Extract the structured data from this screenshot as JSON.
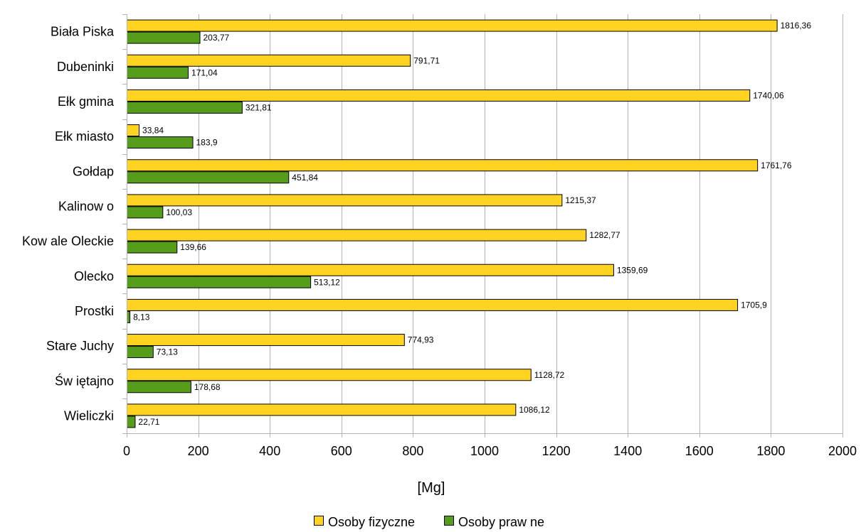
{
  "chart_data": {
    "type": "bar",
    "orientation": "horizontal",
    "categories": [
      "Biała Piska",
      "Dubeninki",
      "Ełk gmina",
      "Ełk miasto",
      "Gołdap",
      "Kalinow o",
      "Kow ale Oleckie",
      "Olecko",
      "Prostki",
      "Stare Juchy",
      "Św iętajno",
      "Wieliczki"
    ],
    "series": [
      {
        "name": "Osoby fizyczne",
        "color": "#FFD320",
        "values": [
          1816.36,
          791.71,
          1740.06,
          33.84,
          1761.76,
          1215.37,
          1282.77,
          1359.69,
          1705.9,
          774.93,
          1128.72,
          1086.12
        ],
        "value_labels": [
          "1816,36",
          "791,71",
          "1740,06",
          "33,84",
          "1761,76",
          "1215,37",
          "1282,77",
          "1359,69",
          "1705,9",
          "774,93",
          "1128,72",
          "1086,12"
        ]
      },
      {
        "name": "Osoby praw ne",
        "color": "#579D1C",
        "values": [
          203.77,
          171.04,
          321.81,
          183.9,
          451.84,
          100.03,
          139.66,
          513.12,
          8.13,
          73.13,
          178.68,
          22.71
        ],
        "value_labels": [
          "203,77",
          "171,04",
          "321,81",
          "183,9",
          "451,84",
          "100,03",
          "139,66",
          "513,12",
          "8,13",
          "73,13",
          "178,68",
          "22,71"
        ]
      }
    ],
    "xlabel": "[Mg]",
    "xlim": [
      0,
      2000
    ],
    "xticks": [
      0,
      200,
      400,
      600,
      800,
      1000,
      1200,
      1400,
      1600,
      1800,
      2000
    ],
    "grid": "vertical",
    "legend_position": "bottom"
  }
}
